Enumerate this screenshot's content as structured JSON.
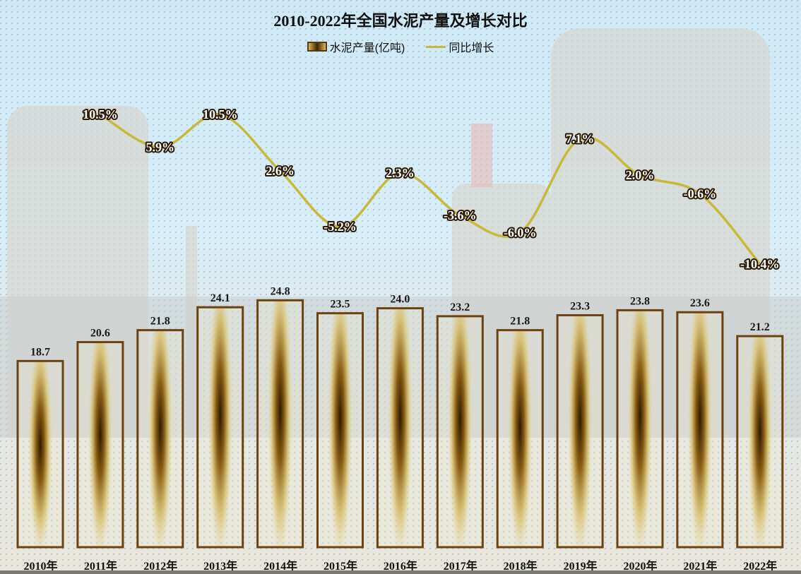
{
  "title": "2010-2022年全国水泥产量及增长对比",
  "legend": {
    "bar_label": "水泥产量(亿吨)",
    "line_label": "同比增长"
  },
  "colors": {
    "bar_border": "#6b4210",
    "bar_fill_dark": "#3a2205",
    "bar_fill_light": "#d9c06a",
    "line": "#c9b93a",
    "label_outline": "#2a1a05"
  },
  "chart_data": {
    "type": "bar+line",
    "title": "2010-2022年全国水泥产量及增长对比",
    "xlabel": "",
    "ylabel": "",
    "categories": [
      "2010年",
      "2011年",
      "2012年",
      "2013年",
      "2014年",
      "2015年",
      "2016年",
      "2017年",
      "2018年",
      "2019年",
      "2020年",
      "2021年",
      "2022年"
    ],
    "series": [
      {
        "name": "水泥产量(亿吨)",
        "type": "bar",
        "values": [
          18.7,
          20.6,
          21.8,
          24.1,
          24.8,
          23.5,
          24.0,
          23.2,
          21.8,
          23.3,
          23.8,
          23.6,
          21.2
        ],
        "labels": [
          "18.7",
          "20.6",
          "21.8",
          "24.1",
          "24.8",
          "23.5",
          "24.0",
          "23.2",
          "21.8",
          "23.3",
          "23.8",
          "23.6",
          "21.2"
        ]
      },
      {
        "name": "同比增长",
        "type": "line",
        "values": [
          null,
          10.5,
          5.9,
          10.5,
          2.6,
          -5.2,
          2.3,
          -3.6,
          -6.0,
          7.1,
          2.0,
          -0.6,
          -10.4
        ],
        "labels": [
          "",
          "10.5%",
          "5.9%",
          "10.5%",
          "2.6%",
          "-5.2%",
          "2.3%",
          "-3.6%",
          "-6.0%",
          "7.1%",
          "2.0%",
          "-0.6%",
          "-10.4%"
        ]
      }
    ],
    "grid": false,
    "legend_position": "top"
  }
}
